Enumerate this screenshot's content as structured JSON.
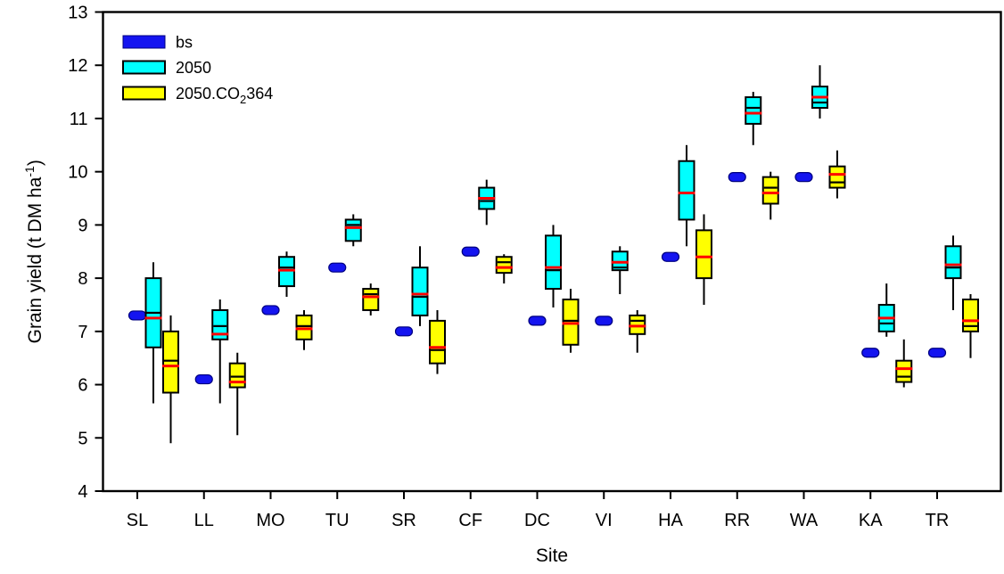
{
  "figure": {
    "background": "#ffffff"
  },
  "chart_data": {
    "type": "box",
    "title": "",
    "xlabel": "Site",
    "ylabel": {
      "pre": "Grain yield (t DM ha",
      "sup": "-1",
      "post": ")"
    },
    "ylim": [
      4,
      13
    ],
    "yticks": [
      4,
      5,
      6,
      7,
      8,
      9,
      10,
      11,
      12,
      13
    ],
    "grid": false,
    "legend_position": "top-left-inside",
    "categories": [
      "SL",
      "LL",
      "MO",
      "TU",
      "SR",
      "CF",
      "DC",
      "VI",
      "HA",
      "RR",
      "WA",
      "KA",
      "TR"
    ],
    "colors": {
      "bs": "#1414f0",
      "bs_edge": "#000080",
      "s2050": "#00ffff",
      "s2050co2": "#ffff00",
      "box_edge": "#000000",
      "median": "#000000",
      "mean": "#ff0000",
      "axis": "#000000"
    },
    "series": [
      {
        "name": "bs",
        "kind": "dash",
        "label": "bs",
        "color": "#1414f0",
        "values": [
          7.3,
          6.1,
          7.4,
          8.2,
          7.0,
          8.5,
          7.2,
          7.2,
          8.4,
          9.9,
          9.9,
          6.6,
          6.6
        ]
      },
      {
        "name": "2050",
        "kind": "box",
        "label": "2050",
        "color": "#00ffff",
        "boxes": [
          {
            "lo": 5.65,
            "q1": 6.7,
            "med": 7.35,
            "mean": 7.25,
            "q3": 8.0,
            "hi": 8.3
          },
          {
            "lo": 5.65,
            "q1": 6.85,
            "med": 7.1,
            "mean": 6.95,
            "q3": 7.4,
            "hi": 7.6
          },
          {
            "lo": 7.65,
            "q1": 7.85,
            "med": 8.2,
            "mean": 8.15,
            "q3": 8.4,
            "hi": 8.5
          },
          {
            "lo": 8.6,
            "q1": 8.7,
            "med": 9.0,
            "mean": 8.95,
            "q3": 9.1,
            "hi": 9.2
          },
          {
            "lo": 7.1,
            "q1": 7.3,
            "med": 7.65,
            "mean": 7.7,
            "q3": 8.2,
            "hi": 8.6
          },
          {
            "lo": 9.0,
            "q1": 9.3,
            "med": 9.45,
            "mean": 9.5,
            "q3": 9.7,
            "hi": 9.85
          },
          {
            "lo": 7.45,
            "q1": 7.8,
            "med": 8.15,
            "mean": 8.2,
            "q3": 8.8,
            "hi": 9.0
          },
          {
            "lo": 7.7,
            "q1": 8.15,
            "med": 8.2,
            "mean": 8.3,
            "q3": 8.5,
            "hi": 8.6
          },
          {
            "lo": 8.6,
            "q1": 9.1,
            "med": 9.6,
            "mean": 9.6,
            "q3": 10.2,
            "hi": 10.5
          },
          {
            "lo": 10.5,
            "q1": 10.9,
            "med": 11.2,
            "mean": 11.1,
            "q3": 11.4,
            "hi": 11.5
          },
          {
            "lo": 11.0,
            "q1": 11.2,
            "med": 11.3,
            "mean": 11.4,
            "q3": 11.6,
            "hi": 12.0
          },
          {
            "lo": 6.9,
            "q1": 7.0,
            "med": 7.15,
            "mean": 7.25,
            "q3": 7.5,
            "hi": 7.9
          },
          {
            "lo": 7.4,
            "q1": 8.0,
            "med": 8.2,
            "mean": 8.25,
            "q3": 8.6,
            "hi": 8.8
          }
        ]
      },
      {
        "name": "2050.CO2364",
        "kind": "box",
        "label_parts": {
          "pre": "2050.CO",
          "sub": "2",
          "post": "364"
        },
        "color": "#ffff00",
        "boxes": [
          {
            "lo": 4.9,
            "q1": 5.85,
            "med": 6.45,
            "mean": 6.35,
            "q3": 7.0,
            "hi": 7.3
          },
          {
            "lo": 5.05,
            "q1": 5.95,
            "med": 6.15,
            "mean": 6.05,
            "q3": 6.4,
            "hi": 6.6
          },
          {
            "lo": 6.65,
            "q1": 6.85,
            "med": 7.1,
            "mean": 7.05,
            "q3": 7.3,
            "hi": 7.4
          },
          {
            "lo": 7.3,
            "q1": 7.4,
            "med": 7.7,
            "mean": 7.65,
            "q3": 7.8,
            "hi": 7.9
          },
          {
            "lo": 6.2,
            "q1": 6.4,
            "med": 6.65,
            "mean": 6.7,
            "q3": 7.2,
            "hi": 7.4
          },
          {
            "lo": 7.9,
            "q1": 8.1,
            "med": 8.3,
            "mean": 8.2,
            "q3": 8.4,
            "hi": 8.45
          },
          {
            "lo": 6.6,
            "q1": 6.75,
            "med": 7.2,
            "mean": 7.15,
            "q3": 7.6,
            "hi": 7.8
          },
          {
            "lo": 6.6,
            "q1": 6.95,
            "med": 7.2,
            "mean": 7.1,
            "q3": 7.3,
            "hi": 7.4
          },
          {
            "lo": 7.5,
            "q1": 8.0,
            "med": 8.4,
            "mean": 8.4,
            "q3": 8.9,
            "hi": 9.2
          },
          {
            "lo": 9.1,
            "q1": 9.4,
            "med": 9.7,
            "mean": 9.6,
            "q3": 9.9,
            "hi": 10.0
          },
          {
            "lo": 9.5,
            "q1": 9.7,
            "med": 9.8,
            "mean": 9.95,
            "q3": 10.1,
            "hi": 10.4
          },
          {
            "lo": 5.95,
            "q1": 6.05,
            "med": 6.15,
            "mean": 6.3,
            "q3": 6.45,
            "hi": 6.85
          },
          {
            "lo": 6.5,
            "q1": 7.0,
            "med": 7.1,
            "mean": 7.2,
            "q3": 7.6,
            "hi": 7.7
          }
        ]
      }
    ]
  }
}
